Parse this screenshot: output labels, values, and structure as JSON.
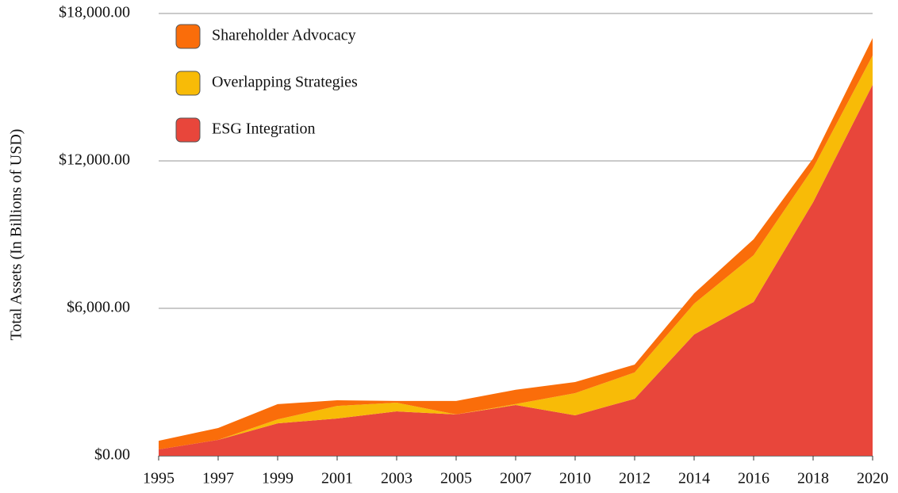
{
  "chart_data": {
    "type": "stacked-area",
    "y_label": "Total Assets (In Billions of USD)",
    "categories": [
      "1995",
      "1997",
      "1999",
      "2001",
      "2003",
      "2005",
      "2007",
      "2010",
      "2012",
      "2014",
      "2016",
      "2018",
      "2020"
    ],
    "series": [
      {
        "name": "ESG Integration",
        "color": "#e8463b",
        "values": [
          260,
          645,
          1320,
          1515,
          1805,
          1680,
          2065,
          1645,
          2320,
          4935,
          6260,
          10320,
          15100
        ]
      },
      {
        "name": "Overlapping Strategies",
        "color": "#f8bb07",
        "values": [
          0,
          0,
          160,
          515,
          355,
          0,
          40,
          905,
          1070,
          1255,
          1900,
          1390,
          1190
        ]
      },
      {
        "name": "Shareholder Advocacy",
        "color": "#fa6d0a",
        "values": [
          350,
          485,
          620,
          230,
          70,
          550,
          580,
          450,
          320,
          420,
          650,
          390,
          710
        ]
      }
    ],
    "ylim": [
      0,
      18000
    ],
    "yticks": [
      {
        "value": 0,
        "label": "$0.00"
      },
      {
        "value": 6000,
        "label": "$6,000.00"
      },
      {
        "value": 12000,
        "label": "$12,000.00"
      },
      {
        "value": 18000,
        "label": "$18,000.00"
      }
    ],
    "grid": true,
    "legend": "top-left"
  }
}
